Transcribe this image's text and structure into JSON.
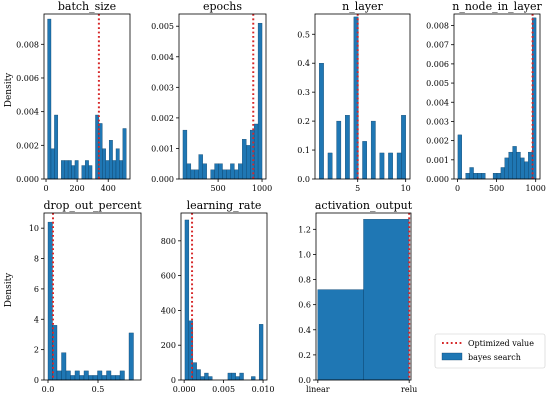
{
  "figure": {
    "ylabel": "Density",
    "legend": {
      "placement": "lower-right",
      "optimized_label": "Optimized value",
      "bars_label": "bayes search",
      "optimized_color": "#d62728",
      "bars_color": "#1f77b4"
    }
  },
  "chart_data": [
    {
      "type": "bar",
      "title": "batch_size",
      "show_ylabel": true,
      "bins": [
        [
          10,
          32
        ],
        [
          32,
          54
        ],
        [
          54,
          76
        ],
        [
          76,
          98
        ],
        [
          98,
          120
        ],
        [
          120,
          142
        ],
        [
          142,
          164
        ],
        [
          164,
          186
        ],
        [
          186,
          208
        ],
        [
          208,
          230
        ],
        [
          230,
          252
        ],
        [
          252,
          274
        ],
        [
          274,
          296
        ],
        [
          296,
          318
        ],
        [
          318,
          340
        ],
        [
          340,
          362
        ],
        [
          362,
          384
        ],
        [
          384,
          406
        ],
        [
          406,
          428
        ],
        [
          428,
          450
        ],
        [
          450,
          472
        ],
        [
          472,
          494
        ],
        [
          494,
          516
        ]
      ],
      "values": [
        0.0095,
        0.0018,
        0.0038,
        0.0,
        0.0011,
        0.0011,
        0.0011,
        0.0008,
        0.0011,
        0.0,
        0.0008,
        0.0011,
        0.0008,
        0.0,
        0.0038,
        0.0033,
        0.0018,
        0.0011,
        0.0023,
        0.0011,
        0.0018,
        0.0011,
        0.003
      ],
      "optimized": 340,
      "xlim": [
        -13,
        540
      ],
      "ylim": [
        0,
        0.0098
      ],
      "xticks": [
        0,
        200,
        400
      ],
      "xticklabels": [
        "0",
        "200",
        "400"
      ],
      "yticks": [
        0,
        0.002,
        0.004,
        0.006,
        0.008
      ],
      "yticklabels": [
        "0.000",
        "0.002",
        "0.004",
        "0.006",
        "0.008"
      ]
    },
    {
      "type": "bar",
      "title": "epochs",
      "show_ylabel": false,
      "bins": [
        [
          100,
          145
        ],
        [
          145,
          190
        ],
        [
          190,
          235
        ],
        [
          235,
          280
        ],
        [
          280,
          325
        ],
        [
          325,
          370
        ],
        [
          370,
          415
        ],
        [
          415,
          460
        ],
        [
          460,
          505
        ],
        [
          505,
          550
        ],
        [
          550,
          595
        ],
        [
          595,
          640
        ],
        [
          640,
          685
        ],
        [
          685,
          730
        ],
        [
          730,
          775
        ],
        [
          775,
          820
        ],
        [
          820,
          865
        ],
        [
          865,
          910
        ],
        [
          910,
          955
        ],
        [
          955,
          1000
        ]
      ],
      "values": [
        0.0016,
        0.0005,
        0.0003,
        0.0003,
        0.0008,
        0.0005,
        0.0,
        0.0003,
        0.0005,
        0.0005,
        0.0003,
        0.0003,
        0.0005,
        0.0003,
        0.0005,
        0.0013,
        0.0011,
        0.0016,
        0.0018,
        0.0051
      ],
      "optimized": 900,
      "xlim": [
        55,
        1045
      ],
      "ylim": [
        0,
        0.0054
      ],
      "xticks": [
        500,
        1000
      ],
      "xticklabels": [
        "500",
        "1000"
      ],
      "yticks": [
        0,
        0.001,
        0.002,
        0.003,
        0.004,
        0.005
      ],
      "yticklabels": [
        "0.000",
        "0.001",
        "0.002",
        "0.003",
        "0.004",
        "0.005"
      ]
    },
    {
      "type": "bar",
      "title": "n_layer",
      "show_ylabel": false,
      "bins": [
        [
          1,
          1.45
        ],
        [
          1.45,
          1.9
        ],
        [
          1.9,
          2.35
        ],
        [
          2.35,
          2.8
        ],
        [
          2.8,
          3.25
        ],
        [
          3.25,
          3.7
        ],
        [
          3.7,
          4.15
        ],
        [
          4.15,
          4.6
        ],
        [
          4.6,
          5.05
        ],
        [
          5.05,
          5.5
        ],
        [
          5.5,
          5.95
        ],
        [
          5.95,
          6.4
        ],
        [
          6.4,
          6.85
        ],
        [
          6.85,
          7.3
        ],
        [
          7.3,
          7.75
        ],
        [
          7.75,
          8.2
        ],
        [
          8.2,
          8.65
        ],
        [
          8.65,
          9.1
        ],
        [
          9.1,
          9.55
        ],
        [
          9.55,
          10
        ]
      ],
      "values": [
        0.4,
        0,
        0.09,
        0,
        0.2,
        0,
        0.22,
        0,
        0.56,
        0,
        0.13,
        0,
        0.2,
        0,
        0.09,
        0,
        0.09,
        0,
        0.09,
        0.22
      ],
      "optimized": 5,
      "xlim": [
        0.55,
        10.45
      ],
      "ylim": [
        0,
        0.57
      ],
      "xticks": [
        5,
        10
      ],
      "xticklabels": [
        "5",
        "10"
      ],
      "yticks": [
        0,
        0.1,
        0.2,
        0.3,
        0.4,
        0.5
      ],
      "yticklabels": [
        "0.0",
        "0.1",
        "0.2",
        "0.3",
        "0.4",
        "0.5"
      ]
    },
    {
      "type": "bar",
      "title": "n_node_in_layer",
      "show_ylabel": false,
      "bins": [
        [
          5,
          55
        ],
        [
          55,
          105
        ],
        [
          105,
          155
        ],
        [
          155,
          205
        ],
        [
          205,
          255
        ],
        [
          255,
          305
        ],
        [
          305,
          355
        ],
        [
          355,
          405
        ],
        [
          405,
          455
        ],
        [
          455,
          505
        ],
        [
          505,
          555
        ],
        [
          555,
          605
        ],
        [
          605,
          655
        ],
        [
          655,
          705
        ],
        [
          705,
          755
        ],
        [
          755,
          805
        ],
        [
          805,
          855
        ],
        [
          855,
          905
        ],
        [
          905,
          955
        ],
        [
          955,
          1005
        ]
      ],
      "values": [
        0.0023,
        0.0,
        0.0003,
        0.0006,
        0.0003,
        0.0003,
        0.0003,
        0.0,
        0.0,
        0.0003,
        0.0003,
        0.0006,
        0.0011,
        0.0014,
        0.0017,
        0.0014,
        0.0011,
        0.0009,
        0.0014,
        0.0084
      ],
      "optimized": 960,
      "xlim": [
        -45,
        1055
      ],
      "ylim": [
        0,
        0.0086
      ],
      "xticks": [
        0,
        500,
        1000
      ],
      "xticklabels": [
        "0",
        "500",
        "1000"
      ],
      "yticks": [
        0,
        0.001,
        0.002,
        0.003,
        0.004,
        0.005,
        0.006,
        0.007,
        0.008
      ],
      "yticklabels": [
        "0.000",
        "0.001",
        "0.002",
        "0.003",
        "0.004",
        "0.005",
        "0.006",
        "0.007",
        "0.008"
      ]
    },
    {
      "type": "bar",
      "title": "drop_out_percent",
      "show_ylabel": true,
      "bins": [
        [
          0,
          0.045
        ],
        [
          0.045,
          0.09
        ],
        [
          0.09,
          0.135
        ],
        [
          0.135,
          0.18
        ],
        [
          0.18,
          0.225
        ],
        [
          0.225,
          0.27
        ],
        [
          0.27,
          0.315
        ],
        [
          0.315,
          0.36
        ],
        [
          0.36,
          0.405
        ],
        [
          0.405,
          0.45
        ],
        [
          0.45,
          0.495
        ],
        [
          0.495,
          0.54
        ],
        [
          0.54,
          0.585
        ],
        [
          0.585,
          0.63
        ],
        [
          0.63,
          0.675
        ],
        [
          0.675,
          0.72
        ],
        [
          0.72,
          0.765
        ],
        [
          0.765,
          0.81
        ],
        [
          0.81,
          0.855
        ],
        [
          0.855,
          0.9
        ]
      ],
      "values": [
        10.4,
        3.6,
        0.6,
        1.8,
        0.6,
        0.3,
        0.6,
        0.3,
        0.6,
        0.3,
        0.3,
        0.6,
        0.3,
        0.6,
        0.3,
        0.3,
        0.6,
        0.0,
        3.1,
        0.0
      ],
      "optimized": 0.05,
      "xlim": [
        -0.04,
        0.93
      ],
      "ylim": [
        0,
        11
      ],
      "xticks": [
        0,
        0.5
      ],
      "xticklabels": [
        "0.0",
        "0.5"
      ],
      "yticks": [
        0,
        2,
        4,
        6,
        8,
        10
      ],
      "yticklabels": [
        "0",
        "2",
        "4",
        "6",
        "8",
        "10"
      ]
    },
    {
      "type": "bar",
      "title": "learning_rate",
      "show_ylabel": false,
      "bins": [
        [
          0.0001,
          0.000595
        ],
        [
          0.000595,
          0.00109
        ],
        [
          0.00109,
          0.001585
        ],
        [
          0.001585,
          0.00208
        ],
        [
          0.00208,
          0.002575
        ],
        [
          0.002575,
          0.00307
        ],
        [
          0.00307,
          0.003565
        ],
        [
          0.003565,
          0.00406
        ],
        [
          0.00406,
          0.004555
        ],
        [
          0.004555,
          0.00505
        ],
        [
          0.00505,
          0.005545
        ],
        [
          0.005545,
          0.00604
        ],
        [
          0.00604,
          0.006535
        ],
        [
          0.006535,
          0.00703
        ],
        [
          0.00703,
          0.007525
        ],
        [
          0.007525,
          0.00802
        ],
        [
          0.00802,
          0.008515
        ],
        [
          0.008515,
          0.00901
        ],
        [
          0.00901,
          0.009505
        ],
        [
          0.009505,
          0.01
        ]
      ],
      "values": [
        920,
        340,
        100,
        60,
        20,
        40,
        20,
        0,
        0,
        0,
        0,
        40,
        40,
        20,
        40,
        0,
        0,
        20,
        0,
        320
      ],
      "optimized": 0.001,
      "xlim": [
        -0.0004,
        0.0105
      ],
      "ylim": [
        0,
        960
      ],
      "xticks": [
        0,
        0.005,
        0.01
      ],
      "xticklabels": [
        "0.000",
        "0.005",
        "0.010"
      ],
      "yticks": [
        0,
        200,
        400,
        600,
        800
      ],
      "yticklabels": [
        "0",
        "200",
        "400",
        "600",
        "800"
      ]
    },
    {
      "type": "bar",
      "title": "activation_output",
      "show_ylabel": false,
      "bins": [
        [
          0,
          0.5
        ],
        [
          0.5,
          1
        ]
      ],
      "values": [
        0.72,
        1.28
      ],
      "optimized": 1,
      "xlim": [
        -0.02,
        1.02
      ],
      "ylim": [
        0,
        1.33
      ],
      "xticks": [
        0,
        1
      ],
      "xticklabels": [
        "linear",
        "relu"
      ],
      "yticks": [
        0,
        0.2,
        0.4,
        0.6,
        0.8,
        1.0,
        1.2
      ],
      "yticklabels": [
        "0.0",
        "0.2",
        "0.4",
        "0.6",
        "0.8",
        "1.0",
        "1.2"
      ]
    }
  ]
}
